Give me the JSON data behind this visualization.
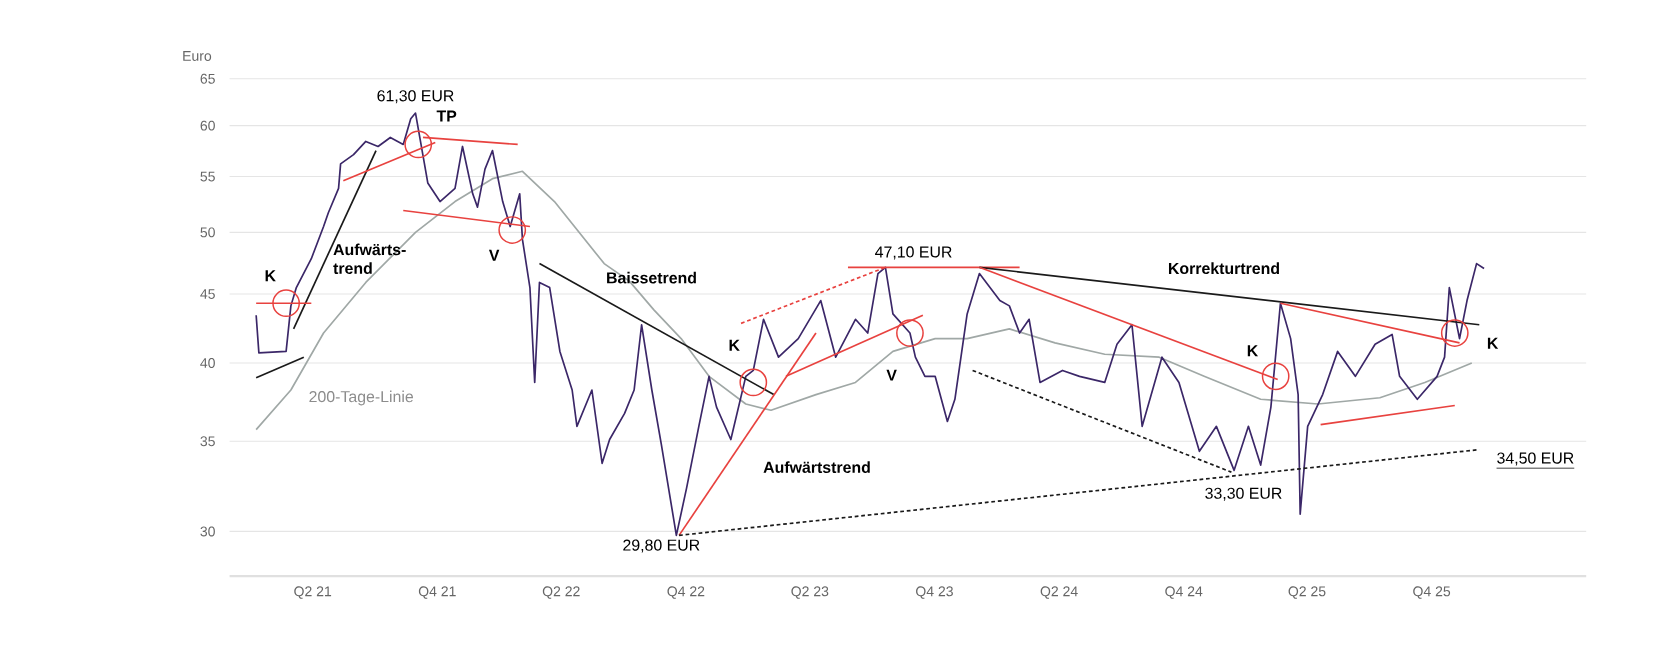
{
  "chart_data": {
    "type": "line",
    "ylabel": "Euro",
    "log": true,
    "grid": "y",
    "xlim": [
      "2020-11-29",
      "2026-05-16"
    ],
    "xticks": [
      {
        "value": "2021-04-01",
        "label": "Q2 21"
      },
      {
        "value": "2021-10-01",
        "label": "Q4 21"
      },
      {
        "value": "2022-04-01",
        "label": "Q2 22"
      },
      {
        "value": "2022-10-01",
        "label": "Q4 22"
      },
      {
        "value": "2023-04-01",
        "label": "Q2 23"
      },
      {
        "value": "2023-10-01",
        "label": "Q4 23"
      },
      {
        "value": "2024-04-01",
        "label": "Q2 24"
      },
      {
        "value": "2024-10-01",
        "label": "Q4 24"
      },
      {
        "value": "2025-04-01",
        "label": "Q2 25"
      },
      {
        "value": "2025-10-01",
        "label": "Q4 25"
      }
    ],
    "ylim": [
      27.8,
      65
    ],
    "yticks": [
      30,
      35,
      40,
      45,
      50,
      55,
      60,
      65
    ],
    "series": [
      {
        "color": "#a0a8a6",
        "x": [
          "2021-01-08",
          "2021-02-28",
          "2021-04-17",
          "2021-06-18",
          "2021-08-30",
          "2021-10-27",
          "2021-12-21",
          "2022-02-03",
          "2022-03-22",
          "2022-06-03",
          "2022-07-10",
          "2022-08-15",
          "2022-09-24",
          "2022-11-04",
          "2022-12-28",
          "2023-02-03",
          "2023-04-10",
          "2023-06-07",
          "2023-08-01",
          "2023-10-02",
          "2023-11-18",
          "2024-01-19",
          "2024-03-26",
          "2024-06-07",
          "2024-08-26",
          "2024-10-31",
          "2025-01-23",
          "2025-04-17",
          "2025-07-17",
          "2025-09-21",
          "2025-11-29"
        ],
        "values": [
          35.7,
          38.2,
          42.1,
          45.9,
          50.0,
          52.7,
          54.8,
          55.5,
          52.7,
          47.4,
          46.0,
          43.8,
          41.7,
          39.1,
          37.3,
          36.9,
          37.9,
          38.7,
          40.8,
          41.7,
          41.7,
          42.4,
          41.4,
          40.6,
          40.4,
          39.1,
          37.6,
          37.3,
          37.7,
          38.7,
          40.0
        ]
      },
      {
        "color": "#3b2768",
        "x": [
          "2021-01-08",
          "2021-01-12",
          "2021-02-21",
          "2021-02-28",
          "2021-03-08",
          "2021-03-30",
          "2021-04-17",
          "2021-04-24",
          "2021-05-09",
          "2021-05-12",
          "2021-05-31",
          "2021-06-18",
          "2021-07-06",
          "2021-07-24",
          "2021-08-12",
          "2021-08-23",
          "2021-08-30",
          "2021-09-10",
          "2021-09-17",
          "2021-10-05",
          "2021-10-27",
          "2021-11-07",
          "2021-11-22",
          "2021-11-29",
          "2021-12-10",
          "2021-12-21",
          "2022-01-05",
          "2022-01-16",
          "2022-01-30",
          "2022-02-03",
          "2022-02-14",
          "2022-02-21",
          "2022-02-28",
          "2022-03-15",
          "2022-03-30",
          "2022-04-17",
          "2022-04-24",
          "2022-05-16",
          "2022-05-31",
          "2022-06-11",
          "2022-07-03",
          "2022-07-17",
          "2022-07-28",
          "2022-08-12",
          "2022-08-26",
          "2022-09-17",
          "2022-10-02",
          "2022-10-20",
          "2022-11-04",
          "2022-11-15",
          "2022-12-06",
          "2022-12-28",
          "2023-01-08",
          "2023-01-23",
          "2023-02-14",
          "2023-03-15",
          "2023-04-17",
          "2023-05-09",
          "2023-06-07",
          "2023-06-25",
          "2023-07-10",
          "2023-07-21",
          "2023-08-01",
          "2023-08-26",
          "2023-09-03",
          "2023-09-17",
          "2023-10-02",
          "2023-10-20",
          "2023-10-31",
          "2023-11-18",
          "2023-12-06",
          "2024-01-05",
          "2024-01-19",
          "2024-02-03",
          "2024-02-17",
          "2024-03-04",
          "2024-04-06",
          "2024-05-01",
          "2024-06-07",
          "2024-06-25",
          "2024-07-17",
          "2024-08-01",
          "2024-08-30",
          "2024-09-24",
          "2024-10-24",
          "2024-11-18",
          "2024-12-14",
          "2025-01-05",
          "2025-01-23",
          "2025-02-07",
          "2025-02-21",
          "2025-03-08",
          "2025-03-19",
          "2025-03-22",
          "2025-04-02",
          "2025-04-24",
          "2025-05-16",
          "2025-06-11",
          "2025-07-10",
          "2025-08-04",
          "2025-08-15",
          "2025-09-10",
          "2025-10-09",
          "2025-10-20",
          "2025-10-27",
          "2025-11-11",
          "2025-11-22",
          "2025-12-06",
          "2025-12-17"
        ],
        "values": [
          43.4,
          40.7,
          40.8,
          44.1,
          45.5,
          47.8,
          50.5,
          51.7,
          53.9,
          56.2,
          57.1,
          58.4,
          57.9,
          58.8,
          58.1,
          60.7,
          61.3,
          57.0,
          54.4,
          52.7,
          53.9,
          57.9,
          53.4,
          52.2,
          55.7,
          57.5,
          52.7,
          50.5,
          53.4,
          49.4,
          45.5,
          38.7,
          45.9,
          45.5,
          40.8,
          38.2,
          35.9,
          38.2,
          33.7,
          35.1,
          36.7,
          38.2,
          42.7,
          38.2,
          34.8,
          29.8,
          32.3,
          35.9,
          39.1,
          37.1,
          35.1,
          39.1,
          39.5,
          43.1,
          40.4,
          41.7,
          44.5,
          40.4,
          43.1,
          42.1,
          46.6,
          47.1,
          43.5,
          42.1,
          40.4,
          39.1,
          39.1,
          36.2,
          37.6,
          43.5,
          46.6,
          44.5,
          44.1,
          42.1,
          43.1,
          38.7,
          39.5,
          39.1,
          38.7,
          41.3,
          42.7,
          35.9,
          40.4,
          38.7,
          34.4,
          35.9,
          33.3,
          35.9,
          33.6,
          37.1,
          44.3,
          41.7,
          37.9,
          30.9,
          35.9,
          37.9,
          40.8,
          39.1,
          41.3,
          42.0,
          39.1,
          37.6,
          39.1,
          40.4,
          45.5,
          41.7,
          44.5,
          47.4,
          47.0
        ]
      },
      {
        "color": "#1a1a1a",
        "x": [
          "2021-01-08",
          "2021-03-19"
        ],
        "values": [
          39.0,
          40.4
        ]
      },
      {
        "color": "#1a1a1a",
        "x": [
          "2021-03-04",
          "2021-07-03"
        ],
        "values": [
          42.4,
          57.5
        ]
      },
      {
        "color": "#e8423f",
        "x": [
          "2021-01-08",
          "2021-03-30"
        ],
        "values": [
          44.3,
          44.3
        ]
      },
      {
        "color": "#e8423f",
        "x": [
          "2021-05-16",
          "2021-09-28"
        ],
        "values": [
          54.6,
          58.3
        ]
      },
      {
        "color": "#e8423f",
        "x": [
          "2021-09-10",
          "2022-01-27"
        ],
        "values": [
          58.8,
          58.1
        ]
      },
      {
        "color": "#e8423f",
        "x": [
          "2021-08-12",
          "2022-02-14"
        ],
        "values": [
          51.9,
          50.5
        ]
      },
      {
        "color": "#1a1a1a",
        "x": [
          "2022-02-28",
          "2023-02-07"
        ],
        "values": [
          47.4,
          37.9
        ]
      },
      {
        "color": "#e8423f",
        "x": [
          "2022-09-21",
          "2023-04-10"
        ],
        "values": [
          29.8,
          42.1
        ]
      },
      {
        "color": "#e8423f",
        "x": [
          "2023-02-25",
          "2023-09-14"
        ],
        "values": [
          39.1,
          43.4
        ]
      },
      {
        "color": "#e8423f",
        "line_style": "dashed",
        "x": [
          "2022-12-21",
          "2023-07-21"
        ],
        "values": [
          42.8,
          47.1
        ]
      },
      {
        "color": "#e8423f",
        "x": [
          "2023-05-27",
          "2024-02-03"
        ],
        "values": [
          47.1,
          47.1
        ]
      },
      {
        "color": "#1a1a1a",
        "x": [
          "2023-12-06",
          "2025-12-10"
        ],
        "values": [
          47.1,
          42.7
        ]
      },
      {
        "color": "#e8423f",
        "x": [
          "2023-12-06",
          "2025-02-17"
        ],
        "values": [
          47.1,
          38.9
        ]
      },
      {
        "color": "#e8423f",
        "x": [
          "2025-02-21",
          "2025-11-11"
        ],
        "values": [
          44.3,
          41.4
        ]
      },
      {
        "color": "#e8423f",
        "x": [
          "2025-04-21",
          "2025-11-04"
        ],
        "values": [
          36.0,
          37.2
        ]
      },
      {
        "color": "#1a1a1a",
        "line_style": "dashed",
        "x": [
          "2023-11-26",
          "2024-12-10"
        ],
        "values": [
          39.5,
          33.2
        ]
      },
      {
        "color": "#1a1a1a",
        "line_style": "dashed",
        "x": [
          "2022-09-21",
          "2025-12-10"
        ],
        "values": [
          29.8,
          34.5
        ]
      },
      {
        "type": "scatter",
        "color": "#e8423f",
        "marker": "circle",
        "x": [
          "2021-02-21",
          "2021-09-03",
          "2022-01-19",
          "2023-01-08",
          "2023-08-26",
          "2025-02-14",
          "2025-11-04"
        ],
        "values": [
          44.3,
          58.1,
          50.2,
          38.7,
          42.1,
          39.1,
          42.1
        ]
      }
    ],
    "annotations": [
      {
        "text": "61,30 EUR",
        "x": "2021-08-30",
        "y": 61.3
      },
      "TP",
      "K",
      "Aufwärts-trend",
      "200-Tage-Linie",
      "V",
      "Baissetrend",
      {
        "text": "29,80 EUR",
        "x": "2022-09-17",
        "y": 29.8
      },
      "K",
      "Aufwärtstrend",
      {
        "text": "47,10 EUR",
        "x": "2023-07-21",
        "y": 47.1
      },
      "V",
      "Korrekturtrend",
      "K",
      {
        "text": "33,30 EUR",
        "x": "2024-12-14",
        "y": 33.3
      },
      "K",
      {
        "text": "34,50 EUR",
        "x": "2025-12-10",
        "y": 34.5
      }
    ]
  }
}
